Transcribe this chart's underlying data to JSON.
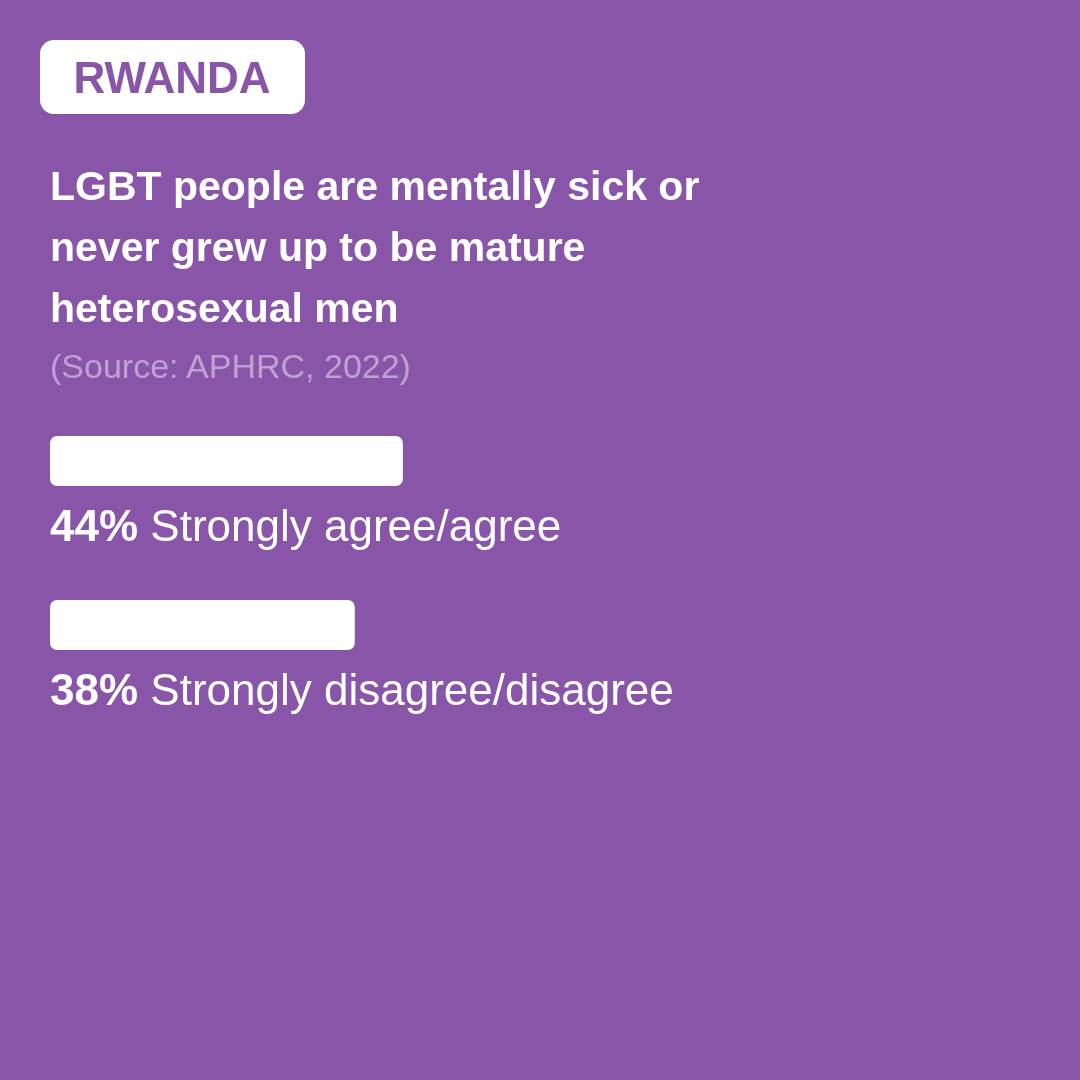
{
  "chart_data": {
    "type": "bar",
    "orientation": "horizontal",
    "title": "LGBT people are mentally sick or never grew up to be mature heterosexual men",
    "annotations": [
      "RWANDA",
      "(Source: APHRC, 2022)"
    ],
    "categories": [
      "Strongly agree/agree",
      "Strongly disagree/disagree"
    ],
    "values": [
      44,
      38
    ],
    "value_labels": [
      "44%",
      "38%"
    ],
    "color": "#ffffff"
  }
}
